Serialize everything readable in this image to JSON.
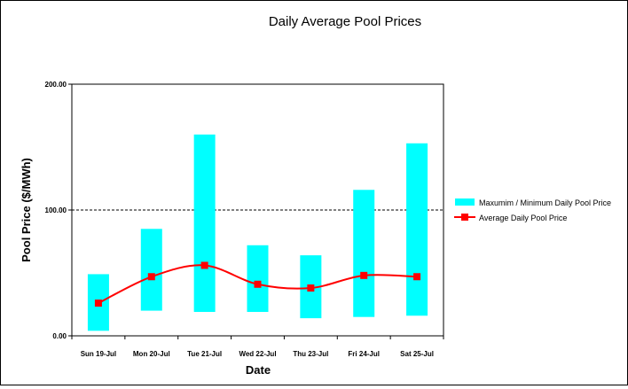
{
  "chart_data": {
    "type": "bar",
    "title": "Daily Average Pool Prices",
    "xlabel": "Date",
    "ylabel": "Pool Price ($/MWh)",
    "ylim": [
      0,
      200
    ],
    "yticks": [
      "0.00",
      "100.00",
      "200.00"
    ],
    "reference_line": 100,
    "categories": [
      "Sun 19-Jul",
      "Mon 20-Jul",
      "Tue 21-Jul",
      "Wed 22-Jul",
      "Thu 23-Jul",
      "Fri 24-Jul",
      "Sat 25-Jul"
    ],
    "series": [
      {
        "name": "Maxumim / Minimum  Daily Pool Price",
        "type": "floating-bar",
        "min": [
          4,
          20,
          19,
          19,
          14,
          15,
          16
        ],
        "max": [
          49,
          85,
          160,
          72,
          64,
          116,
          153
        ]
      },
      {
        "name": "Average Daily Pool Price",
        "type": "line",
        "values": [
          26,
          47,
          56,
          41,
          38,
          48,
          47
        ]
      }
    ],
    "legend_position": "right",
    "grid": false,
    "colors": {
      "bars": "#00FFFF",
      "line": "#FF0000",
      "marker": "#FF0000"
    }
  }
}
